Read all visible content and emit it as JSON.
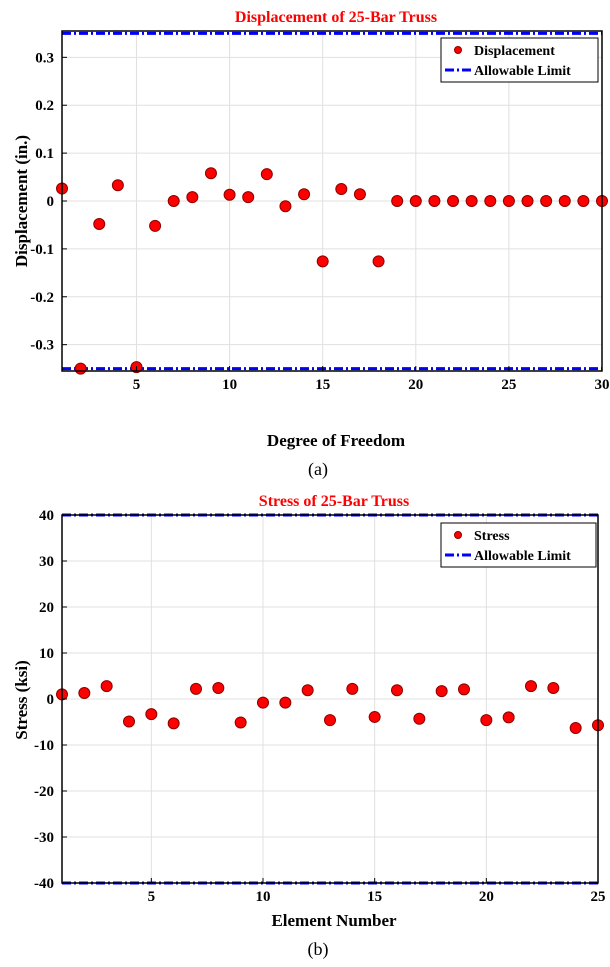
{
  "colors": {
    "marker_fill": "#ff0000",
    "marker_edge": "#8b0000",
    "limit_line": "#0000ff",
    "title": "#ff0000",
    "axes": "#000000",
    "grid": "#e0e0e0"
  },
  "chart_data": [
    {
      "panel_label": "(a)",
      "type": "scatter",
      "title": "Displacement of 25-Bar Truss",
      "xlabel": "Degree of Freedom",
      "ylabel": "Displacement (in.)",
      "xlim": [
        1,
        30
      ],
      "ylim": [
        -0.355,
        0.355
      ],
      "xticks": [
        5,
        10,
        15,
        20,
        25,
        30
      ],
      "xtick_labels": [
        "5",
        "10",
        "15",
        "20",
        "25",
        "30"
      ],
      "yticks": [
        -0.3,
        -0.2,
        -0.1,
        0,
        0.1,
        0.2,
        0.3
      ],
      "ytick_labels": [
        "-0.3",
        "-0.2",
        "-0.1",
        "0",
        "0.1",
        "0.2",
        "0.3"
      ],
      "grid": true,
      "legend_position": "top-right",
      "series": [
        {
          "name": "Displacement",
          "kind": "markers",
          "x": [
            1,
            2,
            3,
            4,
            5,
            6,
            7,
            8,
            9,
            10,
            11,
            12,
            13,
            14,
            15,
            16,
            17,
            18,
            19,
            20,
            21,
            22,
            23,
            24,
            25,
            26,
            27,
            28,
            29,
            30
          ],
          "y": [
            0.026,
            -0.35,
            -0.048,
            0.033,
            -0.347,
            -0.052,
            0.0,
            0.008,
            0.058,
            0.013,
            0.008,
            0.056,
            -0.011,
            0.014,
            -0.126,
            0.025,
            0.014,
            -0.126,
            0.0,
            0.0,
            0.0,
            0.0,
            0.0,
            0.0,
            0.0,
            0.0,
            0.0,
            0.0,
            0.0,
            0.0
          ]
        },
        {
          "name": "Allowable Limit",
          "kind": "limit-lines",
          "levels": [
            0.35,
            -0.35
          ]
        }
      ]
    },
    {
      "panel_label": "(b)",
      "type": "scatter",
      "title": "Stress of 25-Bar Truss",
      "xlabel": "Element Number",
      "ylabel": "Stress (ksi)",
      "xlim": [
        1,
        25
      ],
      "ylim": [
        -40,
        40
      ],
      "xticks": [
        5,
        10,
        15,
        20,
        25
      ],
      "xtick_labels": [
        "5",
        "10",
        "15",
        "20",
        "25"
      ],
      "yticks": [
        -40,
        -30,
        -20,
        -10,
        0,
        10,
        20,
        30,
        40
      ],
      "ytick_labels": [
        "-40",
        "-30",
        "-20",
        "-10",
        "0",
        "10",
        "20",
        "30",
        "40"
      ],
      "grid": true,
      "legend_position": "top-right",
      "series": [
        {
          "name": "Stress",
          "kind": "markers",
          "x": [
            1,
            2,
            3,
            4,
            5,
            6,
            7,
            8,
            9,
            10,
            11,
            12,
            13,
            14,
            15,
            16,
            17,
            18,
            19,
            20,
            21,
            22,
            23,
            24,
            25
          ],
          "y": [
            1.0,
            1.3,
            2.8,
            -4.9,
            -3.3,
            -5.3,
            2.2,
            2.4,
            -5.1,
            -0.8,
            -0.8,
            1.9,
            -4.6,
            2.2,
            -3.9,
            1.9,
            -4.3,
            1.7,
            2.1,
            -4.6,
            -4.0,
            2.8,
            2.4,
            -6.3,
            -5.7
          ]
        },
        {
          "name": "Allowable Limit",
          "kind": "limit-lines",
          "levels": [
            40,
            -40
          ]
        }
      ]
    }
  ]
}
